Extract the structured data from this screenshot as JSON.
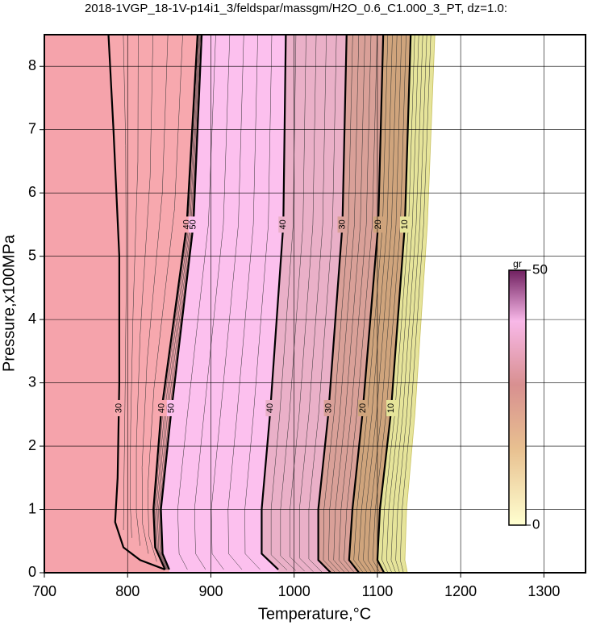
{
  "chart_data": {
    "type": "contour",
    "title": "2018-1VGP_18-1V-p14i1_3/feldspar/massgm/H2O_0.6_C1.000_3_PT, dz=1.0:",
    "xlabel": "Temperature,°C",
    "ylabel": "Pressure,x100MPa",
    "xlim": [
      700,
      1350
    ],
    "ylim": [
      0,
      8.5
    ],
    "xticks": [
      700,
      800,
      900,
      1000,
      1100,
      1200,
      1300
    ],
    "yticks": [
      0,
      1,
      2,
      3,
      4,
      5,
      6,
      7,
      8
    ],
    "grid": true,
    "contours": [
      {
        "level": 30,
        "x": [
          777,
          783,
          790,
          790,
          788,
          785,
          795,
          815,
          845
        ],
        "y": [
          8.5,
          7,
          5,
          3,
          1.5,
          0.8,
          0.4,
          0.2,
          0.05
        ]
      },
      {
        "level": 40,
        "x": [
          884,
          871,
          840,
          831,
          833,
          845
        ],
        "y": [
          8.5,
          5.5,
          2.5,
          1,
          0.4,
          0.05
        ]
      },
      {
        "level": 50,
        "x": [
          889,
          879,
          852,
          840,
          842,
          850
        ],
        "y": [
          8.5,
          5.5,
          2.5,
          1,
          0.3,
          0.05
        ]
      },
      {
        "level": 40,
        "x": [
          990,
          987,
          971,
          961,
          961,
          981
        ],
        "y": [
          8.5,
          5.5,
          2.5,
          1,
          0.3,
          0.05
        ]
      },
      {
        "level": 30,
        "x": [
          1063,
          1058,
          1041,
          1029,
          1029,
          1044
        ],
        "y": [
          8.5,
          5.5,
          2.5,
          1,
          0.2,
          0
        ]
      },
      {
        "level": 20,
        "x": [
          1107,
          1101,
          1082,
          1070,
          1066,
          1078
        ],
        "y": [
          8.5,
          5.5,
          2.5,
          1,
          0.2,
          0
        ]
      },
      {
        "level": 10,
        "x": [
          1140,
          1133,
          1116,
          1103,
          1100,
          1108
        ],
        "y": [
          8.5,
          5.5,
          2.5,
          1,
          0.2,
          0
        ]
      },
      {
        "level": 0,
        "x": [
          1169,
          1160,
          1145,
          1135,
          1133,
          1136
        ],
        "y": [
          8.5,
          5.5,
          2.5,
          1,
          0.2,
          0
        ]
      }
    ],
    "colorbar": {
      "label": "gr",
      "lim": [
        0,
        50
      ],
      "ticks": [
        0,
        50
      ]
    }
  }
}
